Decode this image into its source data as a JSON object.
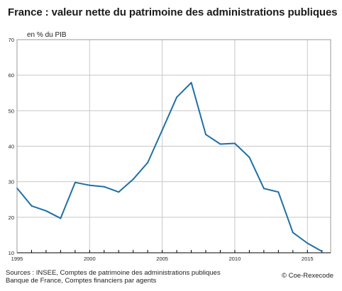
{
  "title": "France : valeur nette du patrimoine des administrations publiques",
  "unit_label": "en % du PIB",
  "sources": [
    "Sources : INSEE, Comptes de patrimoine des administrations publiques",
    "Banque de France, Comptes financiers par agents"
  ],
  "copyright": "© Coe-Rexecode",
  "colors": {
    "line": "#1f6fa6",
    "grid": "#c8c8c8",
    "axis": "#000000"
  },
  "chart_data": {
    "type": "line",
    "title": "France : valeur nette du patrimoine des administrations publiques",
    "ylabel": "en % du PIB",
    "xlabel": "",
    "xlim": [
      1995,
      2016
    ],
    "ylim": [
      10,
      70
    ],
    "yticks": [
      10,
      20,
      30,
      40,
      50,
      60,
      70
    ],
    "xticks": [
      1995,
      2000,
      2005,
      2010,
      2015
    ],
    "grid": true,
    "series": [
      {
        "x": [
          1995,
          1996,
          1997,
          1998,
          1999,
          2000,
          2001,
          2002,
          2003,
          2004,
          2005,
          2006,
          2007,
          2008,
          2009,
          2010,
          2011,
          2012,
          2013,
          2014,
          2015,
          2016
        ],
        "values": [
          28.2,
          23.2,
          21.8,
          19.7,
          29.8,
          29.0,
          28.6,
          27.1,
          30.7,
          35.4,
          44.5,
          53.8,
          57.9,
          43.3,
          40.6,
          40.8,
          36.9,
          28.1,
          27.1,
          15.7,
          12.7,
          10.4
        ]
      }
    ]
  }
}
